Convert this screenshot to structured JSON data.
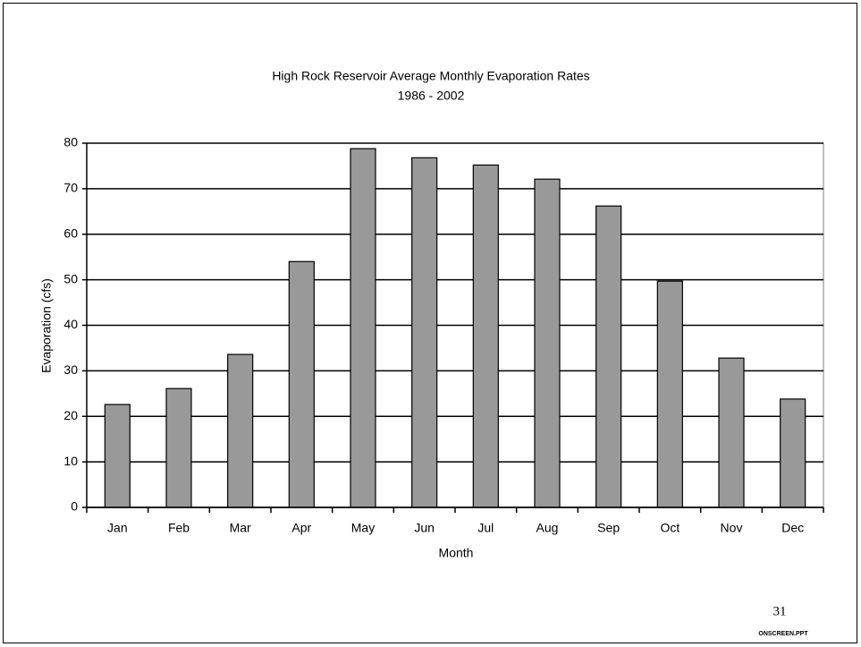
{
  "chart_data": {
    "type": "bar",
    "title": "High Rock Reservoir Average Monthly Evaporation Rates",
    "subtitle": "1986 - 2002",
    "x_label": "Month",
    "y_label": "Evaporation (cfs)",
    "categories": [
      "Jan",
      "Feb",
      "Mar",
      "Apr",
      "May",
      "Jun",
      "Jul",
      "Aug",
      "Sep",
      "Oct",
      "Nov",
      "Dec"
    ],
    "values": [
      22.6,
      26.1,
      33.6,
      54.0,
      78.8,
      76.8,
      75.2,
      72.1,
      66.2,
      49.7,
      32.8,
      23.8
    ],
    "color": "#999999",
    "ylim": [
      0,
      80
    ],
    "yticks": [
      0,
      10,
      20,
      30,
      40,
      50,
      60,
      70,
      80
    ],
    "grid": true
  },
  "slide": {
    "number": 31,
    "file": "ONSCREEN.PPT"
  }
}
